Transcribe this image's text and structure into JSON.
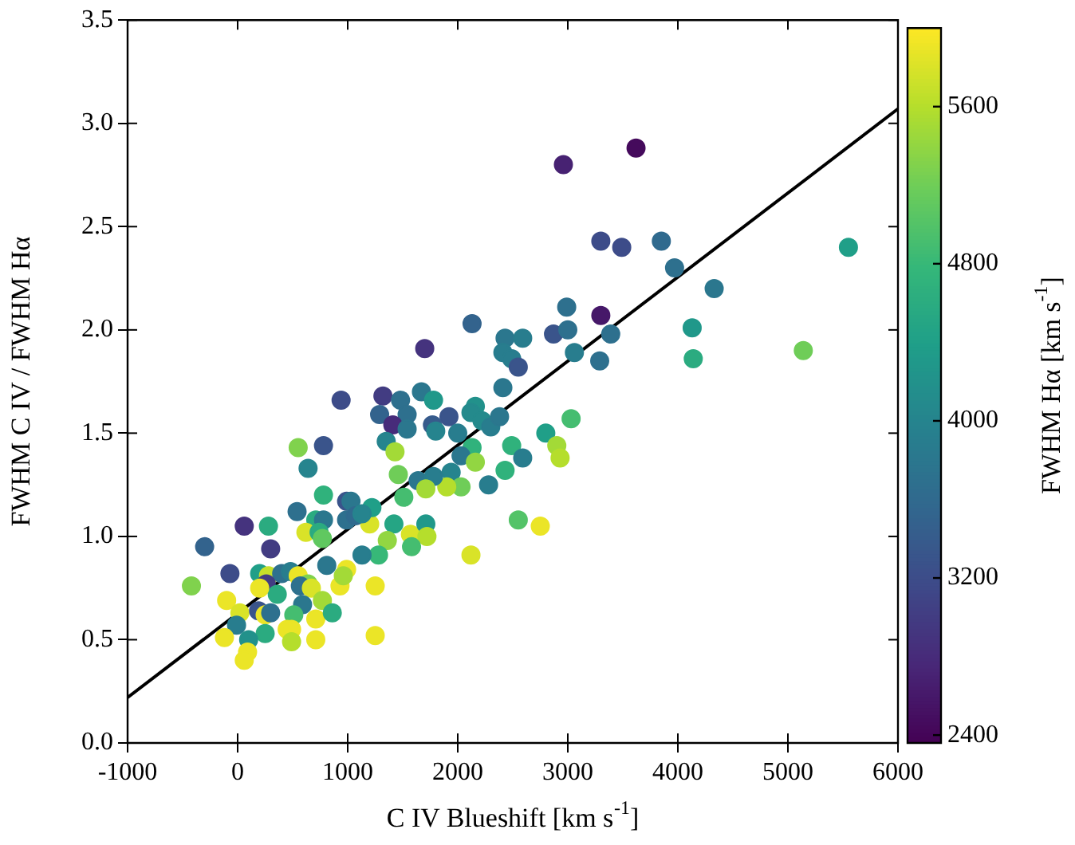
{
  "chart_data": {
    "type": "scatter",
    "xlabel": "C IV Blueshift [km s$^{-1}$]",
    "ylabel": "FWHM C IV / FWHM Hα",
    "clabel": "FWHM Hα [km s$^{-1}$]",
    "xlim": [
      -1000,
      6000
    ],
    "xticks": [
      -1000,
      0,
      1000,
      2000,
      3000,
      4000,
      5000,
      6000
    ],
    "ylim": [
      0,
      3.5
    ],
    "yticks": [
      {
        "value": 0,
        "label": "0.0"
      },
      {
        "value": 0.5,
        "label": "0.5"
      },
      {
        "value": 1,
        "label": "1.0"
      },
      {
        "value": 1.5,
        "label": "1.5"
      },
      {
        "value": 2,
        "label": "2.0"
      },
      {
        "value": 2.5,
        "label": "2.5"
      },
      {
        "value": 3,
        "label": "3.0"
      },
      {
        "value": 3.5,
        "label": "3.5"
      }
    ],
    "clim": [
      2360,
      6000
    ],
    "cticks": [
      2400,
      3200,
      4000,
      4800,
      5600
    ],
    "grid": false,
    "legend": false,
    "marker": "circle",
    "series": [
      {
        "type": "scatter",
        "x": [
          2960,
          3620,
          3300,
          3490,
          3850,
          3970,
          4330,
          5550,
          4130,
          4140,
          5140,
          2130,
          2430,
          2590,
          2990,
          3300,
          2870,
          3000,
          3390,
          3060,
          3290,
          2410,
          2490,
          2550,
          2410,
          1920,
          2160,
          2120,
          2220,
          2300,
          2380,
          3030,
          2000,
          2130,
          2490,
          2800,
          2900,
          2930,
          2590,
          2030,
          1940,
          2160,
          2430,
          2030,
          1900,
          2280,
          2550,
          2750,
          2120,
          1700,
          940,
          1320,
          1480,
          1670,
          1780,
          1290,
          1540,
          1410,
          1540,
          1770,
          1800,
          550,
          780,
          1350,
          1430,
          640,
          1460,
          1640,
          1780,
          1710,
          1510,
          1200,
          1220,
          990,
          1030,
          780,
          540,
          710,
          780,
          620,
          740,
          770,
          990,
          1070,
          1130,
          1420,
          1570,
          1710,
          1720,
          1360,
          1580,
          1280,
          1130,
          -300,
          60,
          280,
          300,
          -70,
          -420,
          200,
          280,
          400,
          480,
          550,
          640,
          570,
          670,
          260,
          360,
          200,
          -100,
          20,
          -10,
          190,
          250,
          300,
          590,
          770,
          710,
          860,
          510,
          450,
          490,
          490,
          710,
          1250,
          250,
          100,
          -120,
          90,
          60,
          1250,
          930,
          990,
          960,
          810
        ],
        "values": [
          2.8,
          2.88,
          2.43,
          2.4,
          2.43,
          2.3,
          2.2,
          2.4,
          2.01,
          1.86,
          1.9,
          2.03,
          1.96,
          1.96,
          2.11,
          2.07,
          1.98,
          2.0,
          1.98,
          1.89,
          1.85,
          1.89,
          1.86,
          1.82,
          1.72,
          1.58,
          1.63,
          1.6,
          1.56,
          1.53,
          1.58,
          1.57,
          1.5,
          1.43,
          1.44,
          1.5,
          1.44,
          1.38,
          1.38,
          1.39,
          1.31,
          1.36,
          1.32,
          1.24,
          1.24,
          1.25,
          1.08,
          1.05,
          0.91,
          1.91,
          1.66,
          1.68,
          1.66,
          1.7,
          1.66,
          1.59,
          1.59,
          1.54,
          1.52,
          1.54,
          1.51,
          1.43,
          1.44,
          1.46,
          1.41,
          1.33,
          1.3,
          1.27,
          1.29,
          1.23,
          1.19,
          1.06,
          1.14,
          1.17,
          1.17,
          1.2,
          1.12,
          1.08,
          1.08,
          1.02,
          1.02,
          0.99,
          1.08,
          1.1,
          1.11,
          1.06,
          1.01,
          1.06,
          1.0,
          0.98,
          0.95,
          0.91,
          0.91,
          0.95,
          1.05,
          1.05,
          0.94,
          0.82,
          0.76,
          0.82,
          0.81,
          0.82,
          0.83,
          0.81,
          0.77,
          0.76,
          0.75,
          0.77,
          0.72,
          0.75,
          0.69,
          0.63,
          0.57,
          0.64,
          0.62,
          0.63,
          0.67,
          0.69,
          0.6,
          0.63,
          0.62,
          0.55,
          0.55,
          0.49,
          0.5,
          0.52,
          0.53,
          0.5,
          0.51,
          0.44,
          0.4,
          0.76,
          0.76,
          0.84,
          0.81,
          0.86
        ],
        "colors": [
          "#472272",
          "#450a5c",
          "#3d4c89",
          "#3d4c89",
          "#306a8e",
          "#2e708e",
          "#2b778e",
          "#209f88",
          "#20988a",
          "#2bab80",
          "#6fcd58",
          "#33638d",
          "#2b778e",
          "#287d8e",
          "#2e708e",
          "#461869",
          "#3a548b",
          "#2e708e",
          "#2e708e",
          "#287d8e",
          "#2e708e",
          "#287d8e",
          "#287d8e",
          "#3a548b",
          "#2b778e",
          "#3a548b",
          "#22918b",
          "#248a8c",
          "#248a8c",
          "#287d8e",
          "#2b778e",
          "#45bd70",
          "#287d8e",
          "#30b27c",
          "#30b27c",
          "#209f88",
          "#a3da37",
          "#b5de2c",
          "#287d8e",
          "#2b778e",
          "#26848e",
          "#92d642",
          "#30b27c",
          "#6fcd58",
          "#b5de2c",
          "#287d8e",
          "#53c368",
          "#ebe527",
          "#d9e328",
          "#45337e",
          "#3d4c89",
          "#423c82",
          "#2e708e",
          "#2b778e",
          "#20988a",
          "#33638d",
          "#2e708e",
          "#472b7a",
          "#2b778e",
          "#375b8c",
          "#26848e",
          "#80d24d",
          "#3a548b",
          "#26848e",
          "#a3da37",
          "#26848e",
          "#6fcd58",
          "#2b778e",
          "#287d8e",
          "#a3da37",
          "#45bd70",
          "#d9e328",
          "#209f88",
          "#3a548b",
          "#2b778e",
          "#30b27c",
          "#2e708e",
          "#2bab80",
          "#2b778e",
          "#d9e328",
          "#2bab80",
          "#60c860",
          "#2e708e",
          "#306a8e",
          "#26848e",
          "#25a584",
          "#d9e328",
          "#20988a",
          "#b5de2c",
          "#92d642",
          "#45bd70",
          "#37b878",
          "#287d8e",
          "#33638d",
          "#45337e",
          "#2bab80",
          "#423c82",
          "#3d4c89",
          "#80d24d",
          "#209f88",
          "#c7e02a",
          "#2e708e",
          "#287d8e",
          "#ebe527",
          "#80d24d",
          "#2e708e",
          "#d9e328",
          "#423c82",
          "#2bab80",
          "#ebe527",
          "#ebe527",
          "#d9e328",
          "#287d8e",
          "#3a548b",
          "#ebe527",
          "#2e708e",
          "#2b778e",
          "#a3da37",
          "#ebe527",
          "#2bab80",
          "#45bd70",
          "#ebe527",
          "#ebe527",
          "#b5de2c",
          "#ebe527",
          "#ebe527",
          "#2bab80",
          "#22918b",
          "#ebe527",
          "#ebe527",
          "#ebe527",
          "#ebe527",
          "#ebe527",
          "#ebe527",
          "#a3da37",
          "#2b778e"
        ],
        "cvalues": [
          2700,
          2450,
          3200,
          3200,
          3600,
          3700,
          3800,
          4400,
          4300,
          4600,
          5200,
          3500,
          3800,
          3900,
          3700,
          2600,
          3300,
          3700,
          3700,
          3900,
          3700,
          3900,
          3900,
          3300,
          3800,
          3300,
          4200,
          4100,
          4100,
          3900,
          3800,
          4900,
          3900,
          4700,
          4700,
          4400,
          5500,
          5600,
          3900,
          3800,
          4000,
          5400,
          4700,
          5200,
          5600,
          3900,
          5000,
          5900,
          5800,
          2900,
          3200,
          3000,
          3700,
          3800,
          4300,
          3500,
          3700,
          2800,
          3800,
          3400,
          4000,
          5300,
          3300,
          4000,
          5500,
          4000,
          5200,
          3800,
          3900,
          5500,
          4900,
          5800,
          4400,
          3300,
          3800,
          4700,
          3700,
          4600,
          3800,
          5800,
          4600,
          5100,
          3700,
          3600,
          4000,
          4500,
          5800,
          4300,
          5600,
          5400,
          4900,
          4800,
          3900,
          3500,
          2900,
          4600,
          3000,
          3200,
          5300,
          4400,
          5700,
          3700,
          3900,
          5900,
          5300,
          3700,
          5800,
          3000,
          4600,
          5900,
          5900,
          5800,
          3900,
          3300,
          5900,
          3700,
          3800,
          5500,
          5900,
          4600,
          4900,
          5900,
          5900,
          5600,
          5900,
          5900,
          4600,
          4200,
          5900,
          5900,
          5900,
          5900,
          5900,
          5900,
          5500,
          3800
        ]
      },
      {
        "type": "line",
        "color": "#000000",
        "marker": "none",
        "line_style": "solid",
        "x": [
          -1000,
          6000
        ],
        "values": [
          0.22,
          3.07
        ]
      }
    ]
  }
}
